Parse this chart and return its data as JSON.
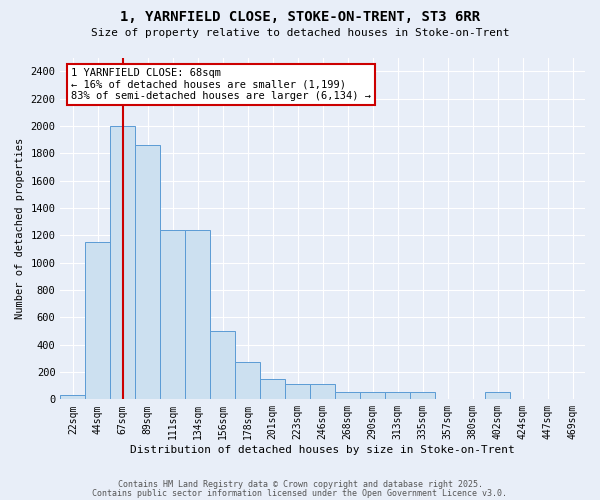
{
  "title": "1, YARNFIELD CLOSE, STOKE-ON-TRENT, ST3 6RR",
  "subtitle": "Size of property relative to detached houses in Stoke-on-Trent",
  "xlabel": "Distribution of detached houses by size in Stoke-on-Trent",
  "ylabel": "Number of detached properties",
  "bar_labels": [
    "22sqm",
    "44sqm",
    "67sqm",
    "89sqm",
    "111sqm",
    "134sqm",
    "156sqm",
    "178sqm",
    "201sqm",
    "223sqm",
    "246sqm",
    "268sqm",
    "290sqm",
    "313sqm",
    "335sqm",
    "357sqm",
    "380sqm",
    "402sqm",
    "424sqm",
    "447sqm",
    "469sqm"
  ],
  "bar_values": [
    30,
    1150,
    2000,
    1860,
    1240,
    1240,
    500,
    270,
    150,
    110,
    110,
    50,
    50,
    50,
    50,
    0,
    0,
    50,
    0,
    0,
    0
  ],
  "bar_color": "#cce0f0",
  "bar_edge_color": "#5b9bd5",
  "property_line_x": 2.0,
  "property_label": "1 YARNFIELD CLOSE: 68sqm",
  "annotation_line1": "← 16% of detached houses are smaller (1,199)",
  "annotation_line2": "83% of semi-detached houses are larger (6,134) →",
  "annotation_box_color": "#ffffff",
  "annotation_box_edge": "#cc0000",
  "line_color": "#cc0000",
  "ylim": [
    0,
    2500
  ],
  "yticks": [
    0,
    200,
    400,
    600,
    800,
    1000,
    1200,
    1400,
    1600,
    1800,
    2000,
    2200,
    2400
  ],
  "background_color": "#e8eef8",
  "grid_color": "#ffffff",
  "footnote1": "Contains HM Land Registry data © Crown copyright and database right 2025.",
  "footnote2": "Contains public sector information licensed under the Open Government Licence v3.0."
}
